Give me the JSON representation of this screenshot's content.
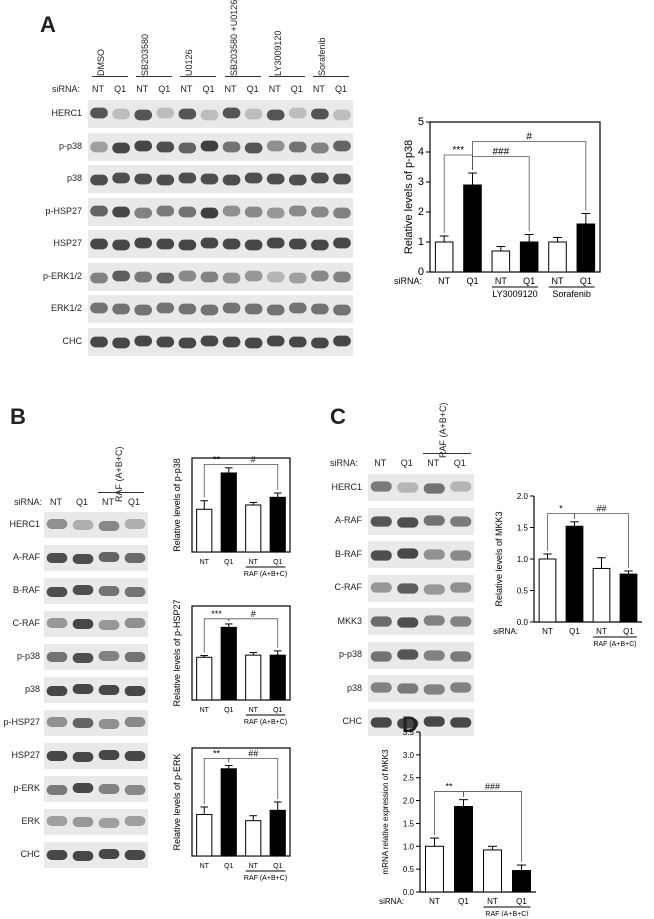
{
  "panels": {
    "A": {
      "letter": "A",
      "sirna_label": "siRNA:",
      "treatments": [
        "DMSO",
        "SB203580",
        "U0126",
        "SB203580 +U0126",
        "LY3009120",
        "Sorafenib"
      ],
      "lanes": [
        "NT",
        "Q1",
        "NT",
        "Q1",
        "NT",
        "Q1",
        "NT",
        "Q1",
        "NT",
        "Q1",
        "NT",
        "Q1"
      ],
      "blots": [
        "HERC1",
        "p-p38",
        "p38",
        "p-HSP27",
        "HSP27",
        "p-ERK1/2",
        "ERK1/2",
        "CHC"
      ]
    },
    "B": {
      "letter": "B",
      "sirna_label": "siRNA:",
      "treatment": "RAF (A+B+C)",
      "lanes": [
        "NT",
        "Q1",
        "NT",
        "Q1"
      ],
      "blots": [
        "HERC1",
        "A-RAF",
        "B-RAF",
        "C-RAF",
        "p-p38",
        "p38",
        "p-HSP27",
        "HSP27",
        "p-ERK",
        "ERK",
        "CHC"
      ]
    },
    "C": {
      "letter": "C",
      "sirna_label": "siRNA:",
      "treatment": "RAF (A+B+C)",
      "lanes": [
        "NT",
        "Q1",
        "NT",
        "Q1"
      ],
      "blots": [
        "HERC1",
        "A-RAF",
        "B-RAF",
        "C-RAF",
        "MKK3",
        "p-p38",
        "p38",
        "CHC"
      ]
    },
    "D": {
      "letter": "D"
    }
  },
  "chart_data": [
    {
      "id": "A",
      "type": "bar",
      "ylabel": "Relative levels of p-p38",
      "ylim": [
        0,
        5
      ],
      "yticks": [
        0,
        1,
        2,
        3,
        4,
        5
      ],
      "sirna_label": "siRNA:",
      "categories": [
        "NT",
        "Q1",
        "NT",
        "Q1",
        "NT",
        "Q1"
      ],
      "values": [
        1.0,
        2.9,
        0.7,
        1.0,
        1.0,
        1.6
      ],
      "errors": [
        0.2,
        0.4,
        0.15,
        0.25,
        0.15,
        0.35
      ],
      "fill": [
        "white",
        "black",
        "white",
        "black",
        "white",
        "black"
      ],
      "group_labels": [
        "LY3009120",
        "Sorafenib"
      ],
      "annotations": [
        "***",
        "###",
        "#"
      ]
    },
    {
      "id": "B1",
      "type": "bar",
      "ylabel": "Relative levels of p-p38",
      "sirna_label": "siRNA:",
      "categories": [
        "NT",
        "Q1",
        "NT",
        "Q1"
      ],
      "values": [
        1.0,
        1.85,
        1.1,
        1.28
      ],
      "errors": [
        0.2,
        0.12,
        0.06,
        0.1
      ],
      "fill": [
        "white",
        "black",
        "white",
        "black"
      ],
      "ymax": 2.2,
      "group_label": "RAF (A+B+C)",
      "annotations": [
        "**",
        "#"
      ]
    },
    {
      "id": "B2",
      "type": "bar",
      "ylabel": "Relative levels of p-HSP27",
      "sirna_label": "siRNA:",
      "categories": [
        "NT",
        "Q1",
        "NT",
        "Q1"
      ],
      "values": [
        1.0,
        1.7,
        1.05,
        1.05
      ],
      "errors": [
        0.04,
        0.08,
        0.06,
        0.1
      ],
      "fill": [
        "white",
        "black",
        "white",
        "black"
      ],
      "ymax": 2.2,
      "group_label": "RAF (A+B+C)",
      "annotations": [
        "***",
        "#"
      ]
    },
    {
      "id": "B3",
      "type": "bar",
      "ylabel": "Relative levels of p-ERK",
      "sirna_label": "siRNA:",
      "categories": [
        "NT",
        "Q1",
        "NT",
        "Q1"
      ],
      "values": [
        1.0,
        2.1,
        0.85,
        1.1
      ],
      "errors": [
        0.18,
        0.08,
        0.12,
        0.2
      ],
      "fill": [
        "white",
        "black",
        "white",
        "black"
      ],
      "ymax": 2.6,
      "group_label": "RAF (A+B+C)",
      "annotations": [
        "**",
        "##"
      ]
    },
    {
      "id": "C",
      "type": "bar",
      "ylabel": "Relative levels of MKK3",
      "ylim": [
        0,
        2.0
      ],
      "yticks": [
        "0.0",
        "0.5",
        "1.0",
        "1.5",
        "2.0"
      ],
      "sirna_label": "siRNA:",
      "categories": [
        "NT",
        "Q1",
        "NT",
        "Q1"
      ],
      "values": [
        1.0,
        1.52,
        0.85,
        0.76
      ],
      "errors": [
        0.08,
        0.07,
        0.17,
        0.05
      ],
      "fill": [
        "white",
        "black",
        "white",
        "black"
      ],
      "group_label": "RAF (A+B+C)",
      "annotations": [
        "*",
        "##"
      ]
    },
    {
      "id": "D",
      "type": "bar",
      "ylabel": "mRNA relative expression of MKK3",
      "ylim": [
        0,
        3.5
      ],
      "yticks": [
        "0.0",
        "0.5",
        "1.0",
        "1.5",
        "2.0",
        "2.5",
        "3.0",
        "3.5"
      ],
      "sirna_label": "siRNA:",
      "categories": [
        "NT",
        "Q1",
        "NT",
        "Q1"
      ],
      "values": [
        1.0,
        1.87,
        0.92,
        0.47
      ],
      "errors": [
        0.18,
        0.15,
        0.08,
        0.12
      ],
      "fill": [
        "white",
        "black",
        "white",
        "black"
      ],
      "group_label": "RAF (A+B+C)",
      "annotations": [
        "**",
        "###"
      ]
    }
  ]
}
